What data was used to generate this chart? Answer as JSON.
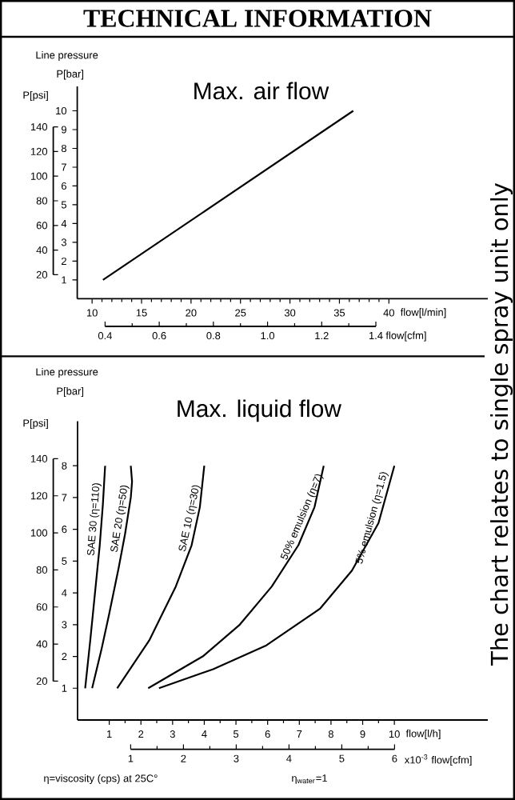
{
  "chart_data": [
    {
      "type": "line",
      "title": "Max. air flow",
      "xlabel": "flow[l/min]",
      "ylabel": "P[bar]",
      "y2label": "P[psi]",
      "x2label": "flow[cfm]",
      "annotations": [
        "TECHNICAL INFORMATION",
        "Line pressure"
      ],
      "xlim": [
        8.5,
        50
      ],
      "xticks": [
        10,
        15,
        20,
        25,
        30,
        35,
        40
      ],
      "ylim": [
        0,
        11.3
      ],
      "yticks": [
        1,
        2,
        3,
        4,
        5,
        6,
        7,
        8,
        9,
        10
      ],
      "y2lim": [
        20,
        140
      ],
      "y2ticks": [
        20,
        40,
        60,
        80,
        100,
        120,
        140
      ],
      "x2lim": [
        0.4,
        1.4
      ],
      "x2ticks": [
        0.4,
        0.6,
        0.8,
        {
          "value": 1.0,
          "label": "1.0"
        },
        1.2,
        1.4
      ],
      "color": "#000000",
      "x": [
        11.1,
        36.4
      ],
      "values": [
        1,
        10
      ]
    },
    {
      "type": "line",
      "title": "Max. liquid flow",
      "xlabel": "flow[l/h]",
      "ylabel": "P[bar]",
      "y2label": "P[psi]",
      "x2label": "x10$^{-3}$ flow[cfm]",
      "annotations": [
        "Line pressure",
        "η=viscosity (cps) at 25C°",
        "η$_{water}$=1",
        "The chart relates to single spray unit only"
      ],
      "xlim": [
        0,
        12.95
      ],
      "xticks": [
        1,
        2,
        3,
        4,
        5,
        6,
        7,
        8,
        9,
        10
      ],
      "ylim": [
        0,
        9.4
      ],
      "yticks": [
        1,
        2,
        3,
        4,
        5,
        6,
        7,
        8
      ],
      "y2lim": [
        20,
        140
      ],
      "y2ticks": [
        20,
        40,
        60,
        80,
        100,
        120,
        140
      ],
      "x2lim": [
        1,
        6
      ],
      "x2ticks": [
        1,
        2,
        3,
        4,
        5,
        6
      ],
      "series": [
        {
          "name": "SAE 30 (η=110)",
          "color": "#000000",
          "x": [
            0.24,
            0.4,
            0.55,
            0.7,
            0.8,
            0.87
          ],
          "values": [
            1,
            2.5,
            4,
            5.5,
            6.8,
            8
          ]
        },
        {
          "name": "SAE 20 (η=50)",
          "color": "#000000",
          "x": [
            0.46,
            0.75,
            1.0,
            1.3,
            1.5,
            1.68,
            1.72,
            1.68
          ],
          "values": [
            1,
            2.2,
            3.35,
            4.8,
            5.86,
            7,
            7.5,
            8
          ]
        },
        {
          "name": "SAE 10 (η=30)",
          "color": "#000000",
          "x": [
            1.25,
            2.26,
            3.1,
            3.6,
            3.86,
            4.0
          ],
          "values": [
            1,
            2.5,
            4.2,
            5.5,
            6.7,
            8
          ]
        },
        {
          "name": "50% emulsion (η=7)",
          "color": "#000000",
          "x": [
            2.23,
            3.95,
            5.12,
            6.13,
            6.97,
            7.48,
            7.77
          ],
          "values": [
            1,
            2.0,
            3.0,
            4.2,
            5.5,
            6.7,
            8
          ]
        },
        {
          "name": "5% emulsion (η=1.5)",
          "color": "#000000",
          "x": [
            2.57,
            4.28,
            5.96,
            7.65,
            8.66,
            9.5,
            10.0
          ],
          "values": [
            1,
            1.6,
            2.35,
            3.5,
            4.7,
            6.2,
            8
          ]
        }
      ]
    }
  ]
}
